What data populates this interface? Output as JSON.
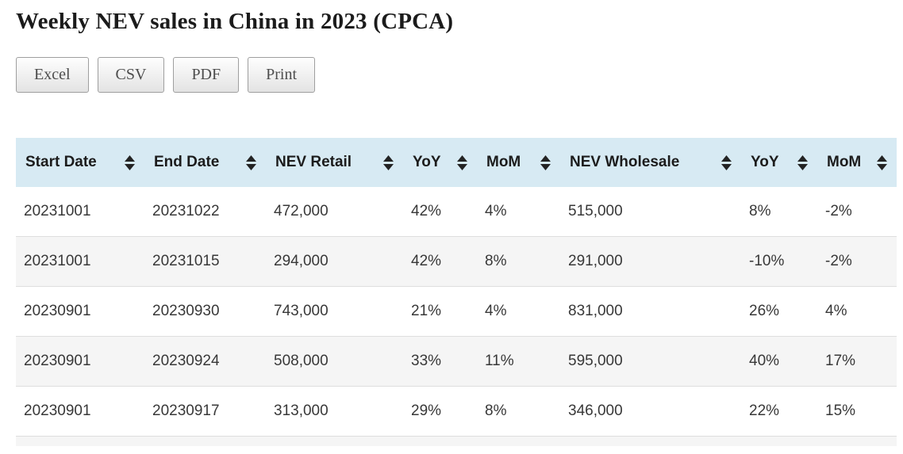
{
  "title": "Weekly NEV sales in China in 2023 (CPCA)",
  "toolbar": {
    "buttons": [
      {
        "label": "Excel"
      },
      {
        "label": "CSV"
      },
      {
        "label": "PDF"
      },
      {
        "label": "Print"
      }
    ]
  },
  "table": {
    "columns": [
      {
        "label": "Start Date",
        "sortable": true
      },
      {
        "label": "End Date",
        "sortable": true
      },
      {
        "label": "NEV Retail",
        "sortable": true
      },
      {
        "label": "YoY",
        "sortable": true
      },
      {
        "label": "MoM",
        "sortable": true
      },
      {
        "label": "NEV Wholesale",
        "sortable": true
      },
      {
        "label": "YoY",
        "sortable": true
      },
      {
        "label": "MoM",
        "sortable": true
      }
    ],
    "rows": [
      [
        "20231001",
        "20231022",
        "472,000",
        "42%",
        "4%",
        "515,000",
        "8%",
        "-2%"
      ],
      [
        "20231001",
        "20231015",
        "294,000",
        "42%",
        "8%",
        "291,000",
        "-10%",
        "-2%"
      ],
      [
        "20230901",
        "20230930",
        "743,000",
        "21%",
        "4%",
        "831,000",
        "26%",
        "4%"
      ],
      [
        "20230901",
        "20230924",
        "508,000",
        "33%",
        "11%",
        "595,000",
        "40%",
        "17%"
      ],
      [
        "20230901",
        "20230917",
        "313,000",
        "29%",
        "8%",
        "346,000",
        "22%",
        "15%"
      ]
    ]
  },
  "icons": {
    "sort_icon": "up-down filled triangles"
  },
  "colors": {
    "header_bg": "#d7eaf3",
    "row_stripe_bg": "#f5f5f5",
    "row_border": "#dedede",
    "header_text": "#1c1c1c",
    "cell_text": "#383838",
    "button_text": "#4d4d4d"
  }
}
